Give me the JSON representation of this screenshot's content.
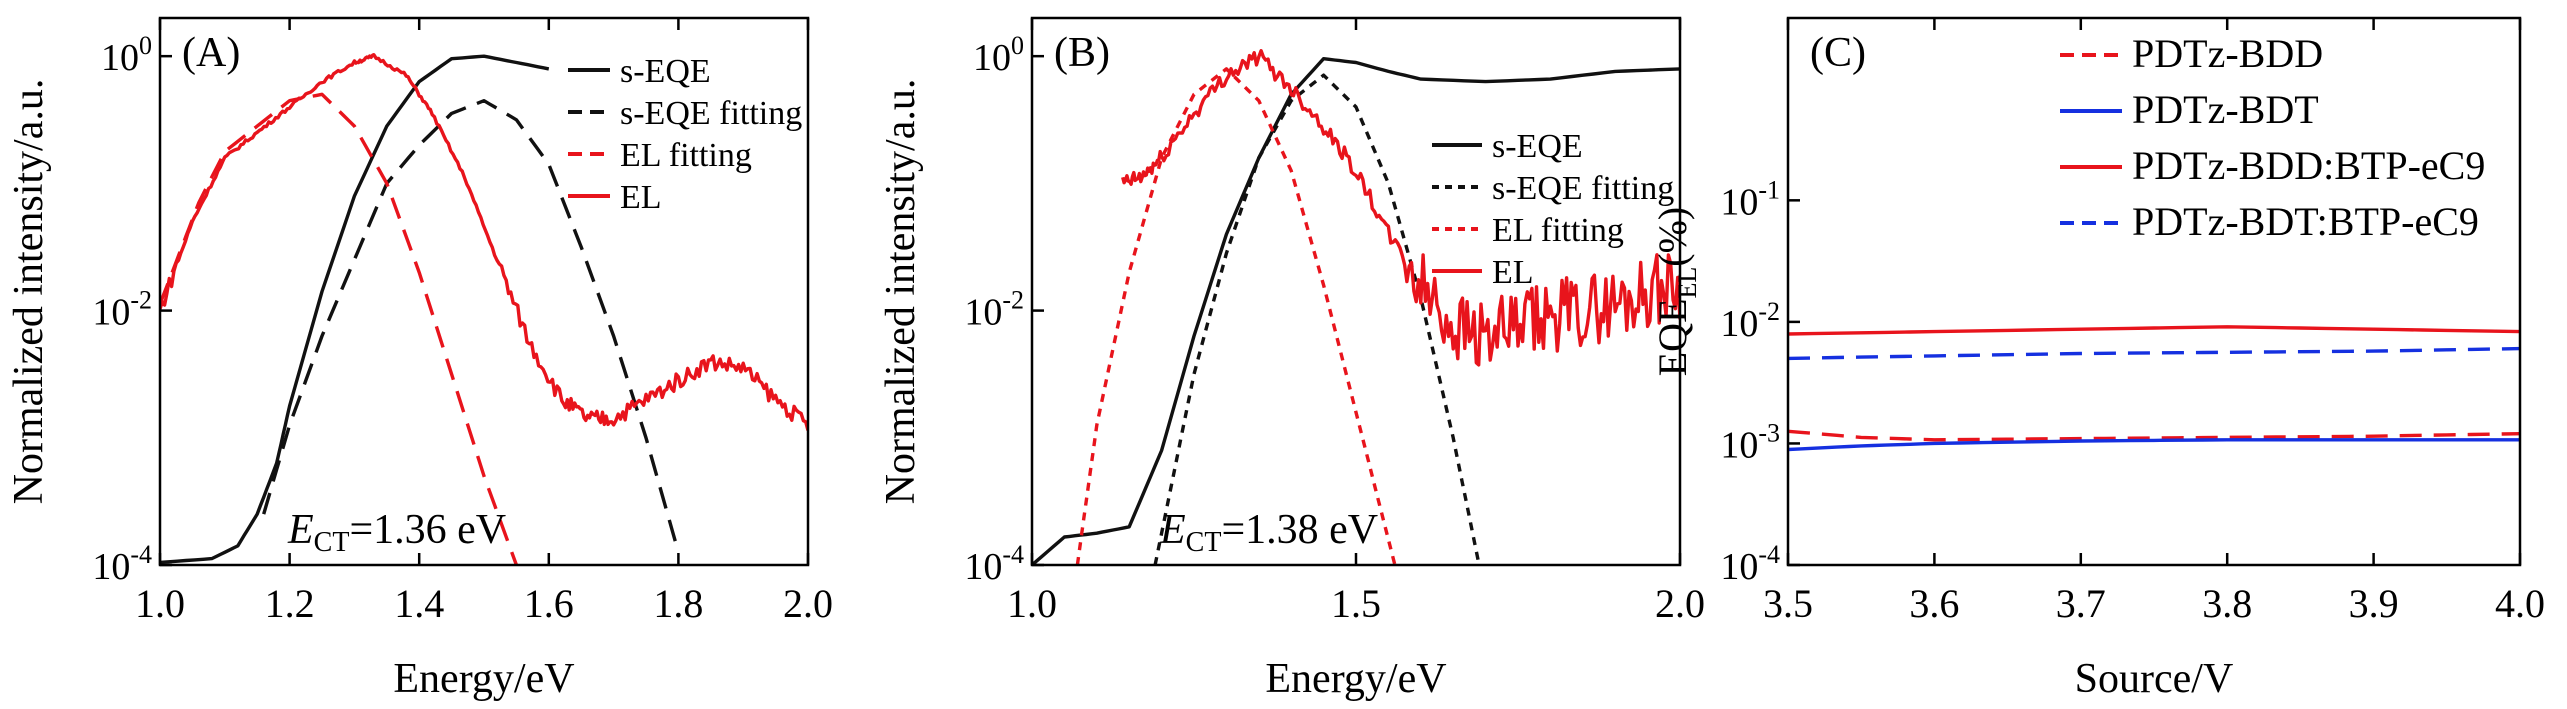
{
  "figure": {
    "type": "multi-panel",
    "panels": 3
  },
  "colors": {
    "red": "#e8141c",
    "black": "#111111",
    "blue": "#1530e0"
  },
  "chart_data": [
    {
      "type": "line",
      "panel_label": "(A)",
      "xlabel": "Energy/eV",
      "ylabel": "Normalized intensity/a.u.",
      "xlim": [
        1.0,
        2.0
      ],
      "ylim_log10": [
        -4,
        0.3
      ],
      "yscale": "log",
      "x_ticks": [
        "1.0",
        "1.2",
        "1.4",
        "1.6",
        "1.8",
        "2.0"
      ],
      "x_tick_values": [
        1.0,
        1.2,
        1.4,
        1.6,
        1.8,
        2.0
      ],
      "y_ticks": [
        {
          "base": "10",
          "exp": "0",
          "log": 0
        },
        {
          "base": "10",
          "exp": "-2",
          "log": -2
        },
        {
          "base": "10",
          "exp": "-4",
          "log": -4
        }
      ],
      "annotation": {
        "sym": "E",
        "sub": "CT",
        "text": "=1.36 eV"
      },
      "legend": [
        {
          "label": "s-EQE",
          "color": "#111111",
          "dash": "solid"
        },
        {
          "label": "s-EQE fitting",
          "color": "#111111",
          "dash": "dashed"
        },
        {
          "label": "EL fitting",
          "color": "#e8141c",
          "dash": "dashed"
        },
        {
          "label": "EL",
          "color": "#e8141c",
          "dash": "solid"
        }
      ],
      "series": [
        {
          "name": "s-EQE",
          "color": "#111111",
          "dash": "solid",
          "noise": 0,
          "x": [
            1.0,
            1.08,
            1.12,
            1.15,
            1.18,
            1.2,
            1.25,
            1.3,
            1.35,
            1.4,
            1.45,
            1.5,
            1.55,
            1.6
          ],
          "log_y": [
            -3.98,
            -3.95,
            -3.85,
            -3.6,
            -3.2,
            -2.75,
            -1.85,
            -1.1,
            -0.55,
            -0.2,
            -0.02,
            0.0,
            -0.05,
            -0.1
          ]
        },
        {
          "name": "s-EQE fitting",
          "color": "#111111",
          "dash": "dashed",
          "noise": 0,
          "x": [
            1.16,
            1.2,
            1.25,
            1.3,
            1.35,
            1.4,
            1.45,
            1.5,
            1.55,
            1.6,
            1.65,
            1.7,
            1.75,
            1.8
          ],
          "log_y": [
            -3.6,
            -2.9,
            -2.2,
            -1.6,
            -1.0,
            -0.7,
            -0.45,
            -0.35,
            -0.5,
            -0.85,
            -1.5,
            -2.2,
            -3.0,
            -3.9
          ]
        },
        {
          "name": "EL fitting",
          "color": "#e8141c",
          "dash": "dashed",
          "noise": 0,
          "x": [
            1.0,
            1.03,
            1.06,
            1.1,
            1.15,
            1.2,
            1.25,
            1.3,
            1.35,
            1.4,
            1.45,
            1.5,
            1.55
          ],
          "log_y": [
            -1.95,
            -1.55,
            -1.15,
            -0.75,
            -0.55,
            -0.35,
            -0.3,
            -0.55,
            -1.0,
            -1.7,
            -2.5,
            -3.3,
            -4.0
          ]
        },
        {
          "name": "EL",
          "color": "#e8141c",
          "dash": "solid",
          "noise": 0.04,
          "x": [
            1.0,
            1.05,
            1.1,
            1.15,
            1.2,
            1.25,
            1.3,
            1.33,
            1.38,
            1.42,
            1.47,
            1.52,
            1.57,
            1.62,
            1.66,
            1.7,
            1.75,
            1.8,
            1.85,
            1.9,
            1.95,
            2.0
          ],
          "log_y": [
            -2.0,
            -1.3,
            -0.8,
            -0.6,
            -0.4,
            -0.2,
            -0.05,
            0.0,
            -0.15,
            -0.45,
            -0.95,
            -1.6,
            -2.25,
            -2.7,
            -2.85,
            -2.85,
            -2.7,
            -2.55,
            -2.4,
            -2.45,
            -2.7,
            -2.9
          ]
        }
      ]
    },
    {
      "type": "line",
      "panel_label": "(B)",
      "xlabel": "Energy/eV",
      "ylabel": "Normalized intensity/a.u.",
      "xlim": [
        1.0,
        2.0
      ],
      "ylim_log10": [
        -4,
        0.3
      ],
      "yscale": "log",
      "x_ticks": [
        "1.0",
        "1.5",
        "2.0"
      ],
      "x_tick_values": [
        1.0,
        1.5,
        2.0
      ],
      "y_ticks": [
        {
          "base": "10",
          "exp": "0",
          "log": 0
        },
        {
          "base": "10",
          "exp": "-2",
          "log": -2
        },
        {
          "base": "10",
          "exp": "-4",
          "log": -4
        }
      ],
      "annotation": {
        "sym": "E",
        "sub": "CT",
        "text": "=1.38 eV"
      },
      "legend": [
        {
          "label": "s-EQE",
          "color": "#111111",
          "dash": "solid"
        },
        {
          "label": "s-EQE fitting",
          "color": "#111111",
          "dash": "dotted"
        },
        {
          "label": "EL fitting",
          "color": "#e8141c",
          "dash": "dotted"
        },
        {
          "label": "EL",
          "color": "#e8141c",
          "dash": "solid"
        }
      ],
      "series": [
        {
          "name": "s-EQE",
          "color": "#111111",
          "dash": "solid",
          "noise": 0,
          "x": [
            1.0,
            1.05,
            1.1,
            1.15,
            1.2,
            1.25,
            1.3,
            1.35,
            1.4,
            1.45,
            1.5,
            1.55,
            1.6,
            1.7,
            1.8,
            1.9,
            2.0
          ],
          "log_y": [
            -4.0,
            -3.78,
            -3.75,
            -3.7,
            -3.1,
            -2.2,
            -1.4,
            -0.8,
            -0.3,
            -0.02,
            -0.05,
            -0.12,
            -0.18,
            -0.2,
            -0.18,
            -0.12,
            -0.1
          ]
        },
        {
          "name": "s-EQE fitting",
          "color": "#111111",
          "dash": "dotted",
          "noise": 0,
          "x": [
            1.19,
            1.25,
            1.3,
            1.35,
            1.4,
            1.45,
            1.5,
            1.55,
            1.6,
            1.65,
            1.69
          ],
          "log_y": [
            -4.0,
            -2.5,
            -1.55,
            -0.8,
            -0.35,
            -0.15,
            -0.4,
            -1.0,
            -1.9,
            -3.0,
            -4.0
          ]
        },
        {
          "name": "EL fitting",
          "color": "#e8141c",
          "dash": "dotted",
          "noise": 0,
          "x": [
            1.07,
            1.1,
            1.15,
            1.2,
            1.25,
            1.3,
            1.35,
            1.4,
            1.45,
            1.5,
            1.56
          ],
          "log_y": [
            -4.0,
            -2.9,
            -1.7,
            -0.8,
            -0.3,
            -0.1,
            -0.35,
            -0.9,
            -1.8,
            -2.8,
            -4.0
          ]
        },
        {
          "name": "EL",
          "color": "#e8141c",
          "dash": "solid",
          "noise": 0.18,
          "x": [
            1.14,
            1.17,
            1.2,
            1.25,
            1.3,
            1.35,
            1.4,
            1.45,
            1.5,
            1.55,
            1.6,
            1.65,
            1.7,
            1.75,
            1.8,
            1.85,
            1.9,
            1.95,
            2.0
          ],
          "log_y": [
            -1.0,
            -0.95,
            -0.8,
            -0.45,
            -0.15,
            0.0,
            -0.25,
            -0.55,
            -0.9,
            -1.4,
            -1.8,
            -2.1,
            -2.2,
            -2.15,
            -2.05,
            -2.0,
            -1.95,
            -1.85,
            -1.8
          ]
        }
      ]
    },
    {
      "type": "line",
      "panel_label": "(C)",
      "xlabel": "Source/V",
      "ylabel": {
        "base": "EQE",
        "sub": "EL",
        "tail": "(%)"
      },
      "xlim": [
        3.5,
        4.0
      ],
      "ylim_log10": [
        -4,
        0.5
      ],
      "yscale": "log",
      "x_ticks": [
        "3.5",
        "3.6",
        "3.7",
        "3.8",
        "3.9",
        "4.0"
      ],
      "x_tick_values": [
        3.5,
        3.6,
        3.7,
        3.8,
        3.9,
        4.0
      ],
      "y_ticks": [
        {
          "base": "10",
          "exp": "-1",
          "log": -1
        },
        {
          "base": "10",
          "exp": "-2",
          "log": -2
        },
        {
          "base": "10",
          "exp": "-3",
          "log": -3
        },
        {
          "base": "10",
          "exp": "-4",
          "log": -4
        }
      ],
      "legend": [
        {
          "label": "PDTz-BDD",
          "color": "#e8141c",
          "dash": "dashed"
        },
        {
          "label": "PDTz-BDT",
          "color": "#1530e0",
          "dash": "solid"
        },
        {
          "label": "PDTz-BDD:BTP-eC9",
          "color": "#e8141c",
          "dash": "solid"
        },
        {
          "label": "PDTz-BDT:BTP-eC9",
          "color": "#1530e0",
          "dash": "dashed"
        }
      ],
      "series": [
        {
          "name": "PDTz-BDD",
          "color": "#e8141c",
          "dash": "dashed",
          "noise": 0,
          "x": [
            3.5,
            3.55,
            3.6,
            3.7,
            3.8,
            3.9,
            4.0
          ],
          "log_y": [
            -2.9,
            -2.95,
            -2.97,
            -2.96,
            -2.95,
            -2.94,
            -2.92
          ]
        },
        {
          "name": "PDTz-BDT",
          "color": "#1530e0",
          "dash": "solid",
          "noise": 0,
          "x": [
            3.5,
            3.55,
            3.6,
            3.7,
            3.8,
            3.9,
            4.0
          ],
          "log_y": [
            -3.05,
            -3.02,
            -3.0,
            -2.98,
            -2.97,
            -2.97,
            -2.97
          ]
        },
        {
          "name": "PDTz-BDD:BTP-eC9",
          "color": "#e8141c",
          "dash": "solid",
          "noise": 0,
          "x": [
            3.5,
            3.6,
            3.7,
            3.8,
            3.9,
            4.0
          ],
          "log_y": [
            -2.1,
            -2.08,
            -2.06,
            -2.04,
            -2.06,
            -2.08
          ]
        },
        {
          "name": "PDTz-BDT:BTP-eC9",
          "color": "#1530e0",
          "dash": "dashed",
          "noise": 0,
          "x": [
            3.5,
            3.6,
            3.7,
            3.8,
            3.9,
            4.0
          ],
          "log_y": [
            -2.3,
            -2.28,
            -2.26,
            -2.25,
            -2.24,
            -2.22
          ]
        }
      ]
    }
  ]
}
